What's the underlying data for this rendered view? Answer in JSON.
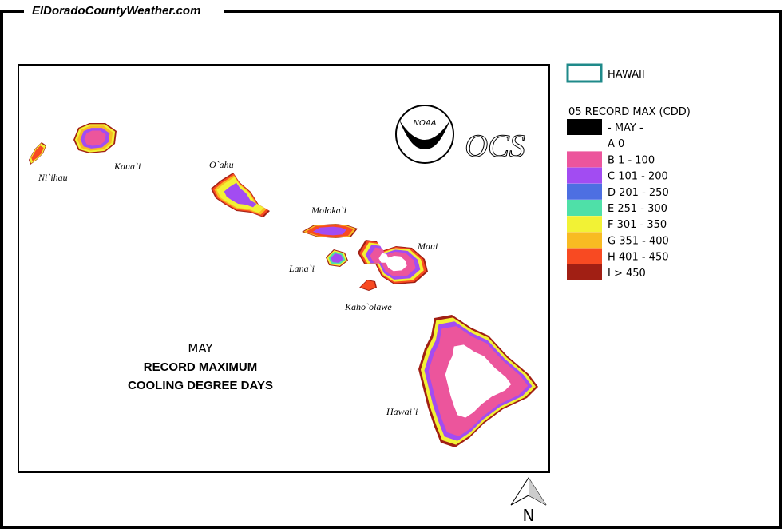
{
  "site_title": "ElDoradoCountyWeather.com",
  "map": {
    "island_labels": [
      "Ni`ihau",
      "Kaua`i",
      "O`ahu",
      "Moloka`i",
      "Lana`i",
      "Maui",
      "Kaho`olawe",
      "Hawai`i"
    ],
    "caption": {
      "month": "MAY",
      "line1": "RECORD MAXIMUM",
      "line2": "COOLING DEGREE DAYS"
    },
    "logo": {
      "noaa": "NOAA",
      "ocs": "OCS"
    },
    "north": "N"
  },
  "legend": {
    "region": {
      "label": "HAWAII",
      "color": "#1f8a8a"
    },
    "title": "05 RECORD MAX (CDD)",
    "entries": [
      {
        "label": "- MAY -",
        "color": "#000000"
      },
      {
        "label": "A 0",
        "color": "#ffffff"
      },
      {
        "label": "B 1 - 100",
        "color": "#ec559c"
      },
      {
        "label": "C 101 - 200",
        "color": "#a24cf2"
      },
      {
        "label": "D 201 - 250",
        "color": "#4d6fe2"
      },
      {
        "label": "E 251 - 300",
        "color": "#4fe0a8"
      },
      {
        "label": "F 301 - 350",
        "color": "#f2f235"
      },
      {
        "label": "G 351 - 400",
        "color": "#f8bb22"
      },
      {
        "label": "H 401 - 450",
        "color": "#f84a22"
      },
      {
        "label": "I > 450",
        "color": "#a11f14"
      }
    ]
  }
}
